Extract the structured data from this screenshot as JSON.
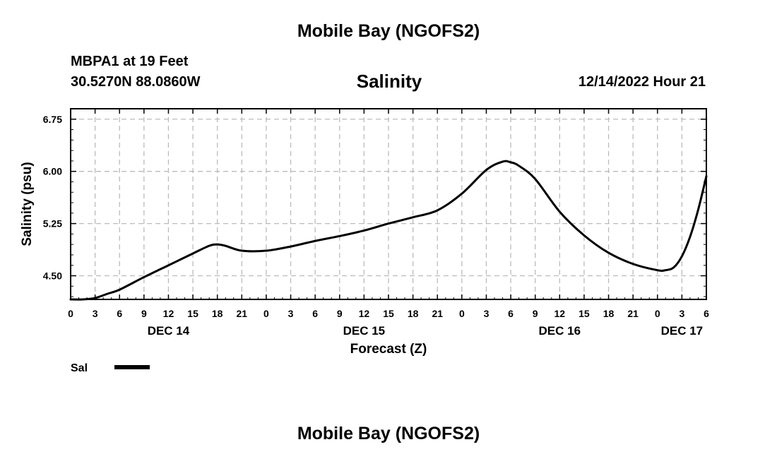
{
  "header": {
    "title": "Mobile Bay (NGOFS2)",
    "station": "MBPA1 at 19 Feet",
    "coords": "30.5270N  88.0860W",
    "chart_title": "Salinity",
    "timestamp": "12/14/2022 Hour 21"
  },
  "footer": {
    "title": "Mobile Bay (NGOFS2)"
  },
  "colors": {
    "line": "#000000",
    "grid": "#bbbbbb"
  },
  "chart_data": {
    "type": "line",
    "title": "Salinity",
    "xlabel": "Forecast (Z)",
    "ylabel": "Salinity (psu)",
    "ylim": [
      4.16,
      6.9
    ],
    "xlim": [
      0,
      78
    ],
    "grid": true,
    "legend_position": "bottom-left",
    "y_ticks": [
      "4.50",
      "5.25",
      "6.00",
      "6.75"
    ],
    "y_tick_values": [
      4.5,
      5.25,
      6.0,
      6.75
    ],
    "x_tick_labels": [
      "0",
      "3",
      "6",
      "9",
      "12",
      "15",
      "18",
      "21",
      "0",
      "3",
      "6",
      "9",
      "12",
      "15",
      "18",
      "21",
      "0",
      "3",
      "6",
      "9",
      "12",
      "15",
      "18",
      "21",
      "0",
      "3",
      "6"
    ],
    "day_labels": [
      {
        "label": "DEC 14",
        "hour": 12
      },
      {
        "label": "DEC 15",
        "hour": 36
      },
      {
        "label": "DEC 16",
        "hour": 60
      },
      {
        "label": "DEC 17",
        "hour": 75
      }
    ],
    "series": [
      {
        "name": "Sal",
        "x": [
          0,
          1.5,
          3,
          4.5,
          6,
          9,
          12,
          15,
          17,
          18,
          19,
          21,
          24,
          27,
          30,
          33,
          36,
          39,
          42,
          45,
          48,
          51,
          53,
          54,
          55,
          57,
          60,
          63,
          66,
          69,
          72,
          73,
          74,
          75,
          76,
          77,
          78
        ],
        "y": [
          4.16,
          4.16,
          4.18,
          4.24,
          4.3,
          4.48,
          4.65,
          4.82,
          4.93,
          4.95,
          4.93,
          4.86,
          4.86,
          4.92,
          5.0,
          5.07,
          5.15,
          5.25,
          5.34,
          5.44,
          5.68,
          6.02,
          6.14,
          6.13,
          6.08,
          5.89,
          5.42,
          5.08,
          4.83,
          4.67,
          4.58,
          4.58,
          4.62,
          4.78,
          5.06,
          5.45,
          5.93
        ]
      }
    ]
  }
}
